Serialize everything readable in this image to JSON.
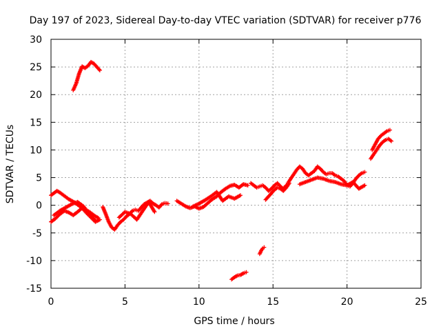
{
  "chart_data": {
    "type": "scatter",
    "title": "Day 197 of 2023, Sidereal Day-to-day VTEC variation (SDTVAR) for receiver p776",
    "xlabel": "GPS time / hours",
    "ylabel": "SDTVAR / TECUs",
    "xlim": [
      0,
      25
    ],
    "ylim": [
      -15,
      30
    ],
    "xticks": [
      "0",
      "5",
      "10",
      "15",
      "20",
      "25"
    ],
    "yticks": [
      "-15",
      "-10",
      "-5",
      "0",
      "5",
      "10",
      "15",
      "20",
      "25",
      "30"
    ],
    "grid": true,
    "legend": "none",
    "marker": "+",
    "color": "#ff0000",
    "series": [
      {
        "x": [
          0.0,
          0.2,
          0.4,
          0.6,
          0.8,
          1.0,
          1.2,
          1.4,
          1.6,
          1.8,
          2.0,
          2.2,
          2.4,
          2.6,
          2.8,
          3.0,
          3.2
        ],
        "y": [
          1.8,
          2.2,
          2.6,
          2.3,
          1.9,
          1.5,
          1.1,
          0.8,
          0.5,
          0.1,
          -0.3,
          -0.6,
          -0.9,
          -1.2,
          -1.6,
          -2.0,
          -2.3
        ]
      },
      {
        "x": [
          0.0,
          0.3,
          0.6,
          0.9,
          1.2,
          1.5,
          1.8,
          2.1,
          2.4,
          2.7,
          3.0,
          3.3
        ],
        "y": [
          -3.0,
          -2.4,
          -1.6,
          -1.0,
          -1.3,
          -1.8,
          -1.2,
          -0.5,
          -1.4,
          -2.2,
          -3.0,
          -2.6
        ]
      },
      {
        "x": [
          0.2,
          0.6,
          1.0,
          1.4,
          1.8,
          2.2,
          2.6,
          3.0
        ],
        "y": [
          -1.8,
          -1.0,
          -0.4,
          0.2,
          0.6,
          -0.2,
          -1.6,
          -2.8
        ]
      },
      {
        "x": [
          1.5,
          1.7,
          1.9,
          2.1,
          2.3,
          2.5,
          2.7,
          2.9,
          3.1,
          3.3
        ],
        "y": [
          20.8,
          22.0,
          23.8,
          25.1,
          24.8,
          25.2,
          25.9,
          25.6,
          25.0,
          24.4
        ]
      },
      {
        "x": [
          3.5,
          3.7,
          3.9,
          4.1,
          4.3,
          4.5,
          4.7,
          4.9,
          5.1,
          5.3,
          5.5,
          5.7,
          5.9,
          6.1,
          6.3,
          6.5,
          6.7,
          6.9,
          7.1,
          7.3,
          7.5,
          7.7,
          7.9
        ],
        "y": [
          -0.3,
          -1.6,
          -3.0,
          -4.0,
          -4.4,
          -3.6,
          -3.0,
          -2.6,
          -2.0,
          -1.6,
          -1.0,
          -0.8,
          -1.0,
          -0.4,
          0.2,
          0.5,
          0.8,
          0.3,
          0.0,
          -0.4,
          0.2,
          0.4,
          0.3
        ]
      },
      {
        "x": [
          4.6,
          5.0,
          5.4,
          5.8,
          6.2,
          6.6,
          7.0
        ],
        "y": [
          -2.2,
          -1.2,
          -1.6,
          -2.6,
          -1.0,
          0.6,
          -1.2
        ]
      },
      {
        "x": [
          8.5,
          8.8,
          9.1,
          9.4,
          9.7,
          10.0,
          10.3,
          10.6,
          10.9,
          11.2,
          11.5,
          11.8,
          12.1,
          12.4,
          12.7,
          13.0,
          13.3
        ],
        "y": [
          0.8,
          0.3,
          -0.2,
          -0.5,
          -0.2,
          -0.6,
          -0.3,
          0.4,
          1.1,
          1.6,
          2.4,
          3.0,
          3.5,
          3.7,
          3.2,
          3.8,
          3.6
        ]
      },
      {
        "x": [
          9.6,
          10.0,
          10.4,
          10.8,
          11.2,
          11.6,
          12.0,
          12.4,
          12.8
        ],
        "y": [
          -0.2,
          0.3,
          0.9,
          1.6,
          2.4,
          0.8,
          1.6,
          1.2,
          1.8
        ]
      },
      {
        "x": [
          12.2,
          12.4,
          12.6,
          12.8,
          13.0,
          13.2
        ],
        "y": [
          -13.4,
          -13.0,
          -12.7,
          -12.6,
          -12.3,
          -12.1
        ]
      },
      {
        "x": [
          14.1,
          14.2,
          14.3,
          14.4
        ],
        "y": [
          -8.8,
          -8.2,
          -7.8,
          -7.6
        ]
      },
      {
        "x": [
          13.5,
          13.7,
          13.9,
          14.1,
          14.3,
          14.5,
          14.7,
          14.9,
          15.1,
          15.3,
          15.5,
          15.7,
          15.9
        ],
        "y": [
          4.0,
          3.6,
          3.2,
          3.4,
          3.6,
          3.2,
          2.6,
          3.0,
          3.6,
          4.0,
          3.4,
          3.0,
          3.6
        ]
      },
      {
        "x": [
          14.5,
          14.7,
          14.9,
          15.1,
          15.3,
          15.5,
          15.7,
          15.9,
          16.1
        ],
        "y": [
          1.0,
          1.6,
          2.2,
          2.8,
          3.2,
          3.0,
          2.6,
          3.2,
          4.0
        ]
      },
      {
        "x": [
          16.0,
          16.2,
          16.4,
          16.6,
          16.8,
          17.0,
          17.2,
          17.4,
          17.6,
          17.8,
          18.0,
          18.2,
          18.4,
          18.6,
          18.8,
          19.0,
          19.2,
          19.4,
          19.6,
          19.8,
          20.0,
          20.2,
          20.4,
          20.6,
          20.8,
          21.0,
          21.2
        ],
        "y": [
          4.0,
          4.8,
          5.6,
          6.4,
          7.0,
          6.6,
          5.8,
          5.4,
          5.8,
          6.2,
          7.0,
          6.6,
          6.0,
          5.6,
          5.8,
          5.8,
          5.4,
          5.2,
          4.8,
          4.4,
          3.6,
          3.4,
          4.0,
          4.8,
          5.4,
          5.8,
          6.0
        ]
      },
      {
        "x": [
          16.8,
          17.2,
          17.6,
          18.0,
          18.4,
          18.8,
          19.2,
          19.6,
          20.0,
          20.4,
          20.8,
          21.2
        ],
        "y": [
          3.8,
          4.2,
          4.6,
          5.0,
          4.8,
          4.4,
          4.2,
          3.8,
          3.6,
          4.2,
          3.0,
          3.6
        ]
      },
      {
        "x": [
          21.6,
          21.8,
          22.0,
          22.2,
          22.4,
          22.6,
          22.8,
          23.0
        ],
        "y": [
          8.4,
          9.2,
          10.0,
          10.8,
          11.4,
          11.8,
          12.0,
          11.6
        ]
      },
      {
        "x": [
          21.7,
          21.9,
          22.1,
          22.3,
          22.5,
          22.7,
          22.9
        ],
        "y": [
          10.0,
          11.0,
          12.0,
          12.6,
          13.0,
          13.4,
          13.6
        ]
      }
    ]
  }
}
